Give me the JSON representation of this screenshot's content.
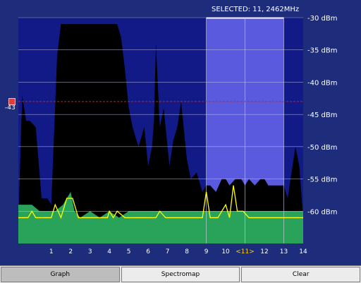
{
  "header": {
    "selected": "SELECTED: 11, 2462MHz"
  },
  "threshold": {
    "label": "-43",
    "value": -43,
    "color": "#e23b3b"
  },
  "tabs": [
    {
      "label": "Graph",
      "active": true
    },
    {
      "label": "Spectromap",
      "active": false
    },
    {
      "label": "Clear",
      "active": false
    }
  ],
  "colors": {
    "background": "#1d2d7c",
    "plot_area": "#111a87",
    "selection": "#5a5adf",
    "peak_fill": "#000000",
    "average_fill": "#2aa35a",
    "current_line": "#ffff00",
    "threshold_line": "#cc2222",
    "selected_channel_label": "#ffd200"
  },
  "chart_data": {
    "type": "area",
    "xlabel": "",
    "ylabel": "",
    "ylim": [
      -65,
      -30
    ],
    "xlim": [
      0,
      14
    ],
    "y_ticks": [
      -30,
      -35,
      -40,
      -45,
      -50,
      -55,
      -60
    ],
    "y_tick_labels": [
      "-30 dBm",
      "-35 dBm",
      "-40 dBm",
      "-45 dBm",
      "-50 dBm",
      "-55 dBm",
      "-60 dBm"
    ],
    "x_ticks": [
      1,
      2,
      3,
      4,
      5,
      6,
      7,
      8,
      9,
      10,
      11,
      12,
      13,
      14
    ],
    "x_tick_labels": [
      "1",
      "2",
      "3",
      "4",
      "5",
      "6",
      "7",
      "8",
      "9",
      "10",
      "<11>",
      "12",
      "13",
      "14"
    ],
    "selected_channel": 11,
    "selection_range": [
      9,
      13
    ],
    "grid": true,
    "series": [
      {
        "name": "peak",
        "x": [
          -0.7,
          -0.5,
          -0.3,
          -0.1,
          0.2,
          0.5,
          0.8,
          1.0,
          1.3,
          1.5,
          2.0,
          3.0,
          4.0,
          4.2,
          4.4,
          4.6,
          4.8,
          5.0,
          5.2,
          5.5,
          5.8,
          6.0,
          6.2,
          6.3,
          6.4,
          6.6,
          6.8,
          7.0,
          7.1,
          7.3,
          7.5,
          7.7,
          8.0,
          8.2,
          8.5,
          8.8,
          9.0,
          9.2,
          9.5,
          9.8,
          10.0,
          10.2,
          10.5,
          10.8,
          11.0,
          11.2,
          11.5,
          11.8,
          12.0,
          12.2,
          12.5,
          12.8,
          13.0,
          13.2,
          13.5,
          13.6,
          13.8,
          14.0
        ],
        "values": [
          -62,
          -42,
          -46,
          -46,
          -47,
          -58,
          -58,
          -59,
          -36,
          -31,
          -31,
          -31,
          -31,
          -31,
          -31,
          -33,
          -38,
          -44,
          -47,
          -50,
          -47,
          -53,
          -50,
          -46,
          -34,
          -47,
          -44,
          -50,
          -53,
          -49,
          -47,
          -43,
          -52,
          -55,
          -54,
          -57,
          -56,
          -56,
          -57,
          -55,
          -55,
          -56,
          -55,
          -55,
          -56,
          -55,
          -56,
          -55,
          -55,
          -56,
          -56,
          -56,
          -56,
          -58,
          -52,
          -50,
          -53,
          -61
        ]
      },
      {
        "name": "average",
        "x": [
          -0.7,
          0.0,
          0.4,
          0.8,
          1.2,
          1.6,
          2.0,
          2.2,
          2.5,
          3.0,
          3.5,
          4.0,
          4.5,
          5.0,
          6.0,
          7.0,
          8.0,
          9.0,
          10.0,
          11.0,
          12.0,
          13.0,
          14.0
        ],
        "values": [
          -59,
          -59,
          -60,
          -60,
          -60,
          -59,
          -57,
          -60,
          -61,
          -60,
          -61,
          -60,
          -61,
          -60,
          -60,
          -60,
          -60,
          -60,
          -60,
          -60,
          -60,
          -60,
          -60
        ]
      },
      {
        "name": "current",
        "x": [
          -0.7,
          -0.2,
          0.0,
          0.2,
          0.6,
          1.0,
          1.2,
          1.5,
          1.8,
          2.1,
          2.4,
          2.8,
          3.2,
          3.6,
          3.9,
          4.0,
          4.2,
          4.4,
          4.8,
          5.2,
          5.6,
          6.0,
          6.4,
          6.6,
          6.9,
          7.2,
          7.8,
          8.4,
          8.8,
          9.0,
          9.2,
          9.6,
          10.0,
          10.2,
          10.4,
          10.6,
          10.9,
          11.2,
          11.6,
          12.0,
          12.4,
          12.8,
          13.2,
          13.6,
          14.0
        ],
        "values": [
          -61,
          -61,
          -60,
          -61,
          -61,
          -61,
          -59,
          -61,
          -58,
          -58,
          -61,
          -61,
          -61,
          -61,
          -61,
          -60,
          -61,
          -60,
          -61,
          -61,
          -61,
          -61,
          -61,
          -60,
          -61,
          -61,
          -61,
          -61,
          -61,
          -57,
          -61,
          -61,
          -59,
          -61,
          -56,
          -60,
          -60,
          -61,
          -61,
          -61,
          -61,
          -61,
          -61,
          -61,
          -61
        ]
      }
    ]
  }
}
